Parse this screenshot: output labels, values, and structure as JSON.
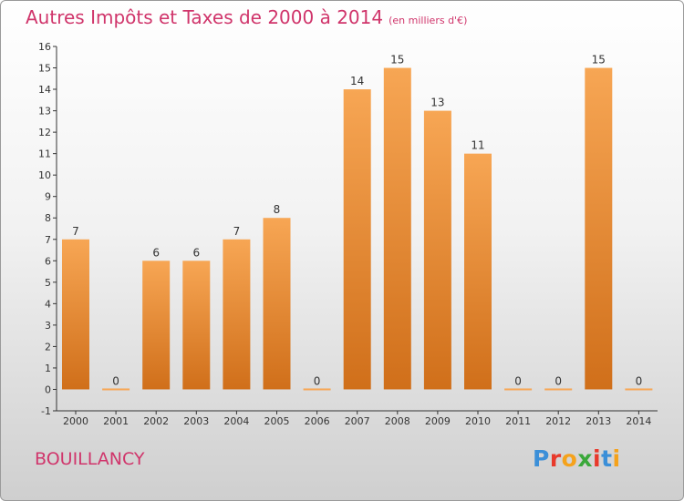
{
  "header": {
    "title": "Autres Impôts et Taxes de 2000 à 2014",
    "unit": "(en milliers d'€)"
  },
  "location": "BOUILLANCY",
  "logo": {
    "text": "Proxiti",
    "colors": [
      "#3b8fd8",
      "#e8392b",
      "#f5a21b",
      "#3aa83a",
      "#e8392b",
      "#3b8fd8",
      "#f5a21b"
    ]
  },
  "chart_data": {
    "type": "bar",
    "categories": [
      "2000",
      "2001",
      "2002",
      "2003",
      "2004",
      "2005",
      "2006",
      "2007",
      "2008",
      "2009",
      "2010",
      "2011",
      "2012",
      "2013",
      "2014"
    ],
    "values": [
      7,
      0,
      6,
      6,
      7,
      8,
      0,
      14,
      15,
      13,
      11,
      0,
      0,
      15,
      0
    ],
    "ylim": [
      -1,
      16
    ],
    "yticks": [
      -1,
      0,
      1,
      2,
      3,
      4,
      5,
      6,
      7,
      8,
      9,
      10,
      11,
      12,
      13,
      14,
      15,
      16
    ],
    "grid": false,
    "bar_color_top": "#f7a654",
    "bar_color_bottom": "#d06f1a"
  }
}
